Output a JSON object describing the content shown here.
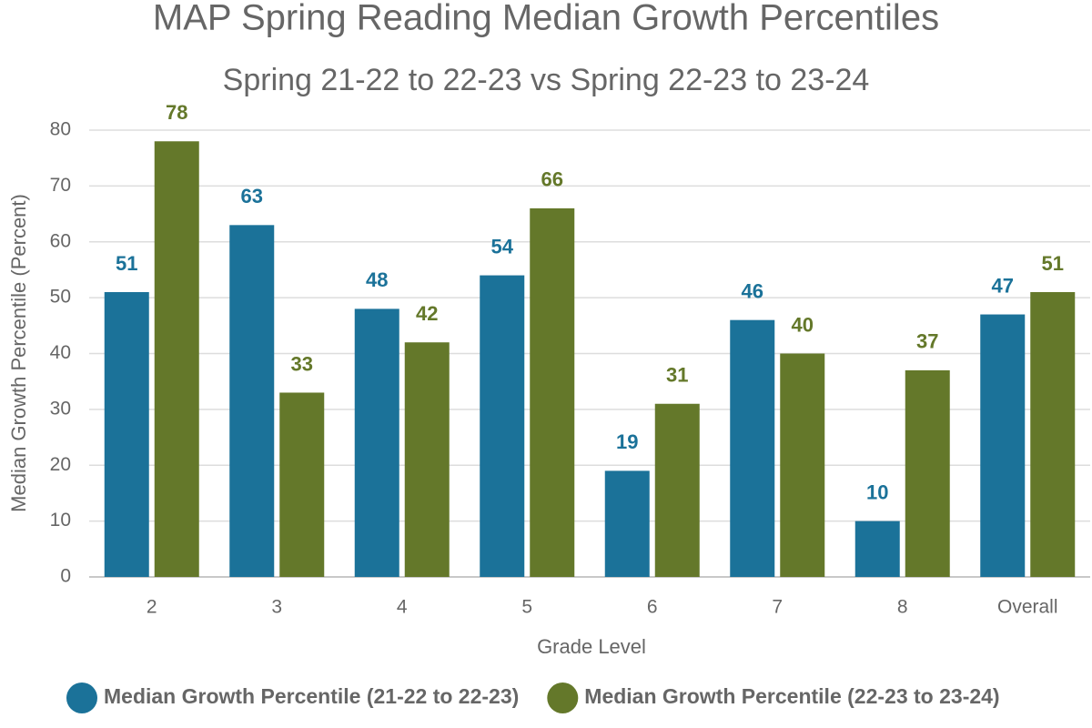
{
  "chart_data": {
    "type": "bar",
    "title": "MAP Spring Reading Median Growth Percentiles",
    "subtitle": "Spring 21-22 to 22-23 vs Spring 22-23 to 23-24",
    "x_label": "Grade Level",
    "y_label": "Median Growth Percentile  (Percent)",
    "categories": [
      "2",
      "3",
      "4",
      "5",
      "6",
      "7",
      "8",
      "Overall"
    ],
    "series": [
      {
        "name": "Median Growth Percentile (21-22 to 22-23)",
        "color": "#1b7299",
        "values": [
          51,
          63,
          48,
          54,
          19,
          46,
          10,
          47
        ]
      },
      {
        "name": "Median Growth Percentile (22-23 to 23-24)",
        "color": "#64782a",
        "values": [
          78,
          33,
          42,
          66,
          31,
          40,
          37,
          51
        ]
      }
    ],
    "ylim": [
      0,
      80
    ],
    "yticks": [
      0,
      10,
      20,
      30,
      40,
      50,
      60,
      70,
      80
    ],
    "grid": true,
    "legend": "bottom"
  }
}
